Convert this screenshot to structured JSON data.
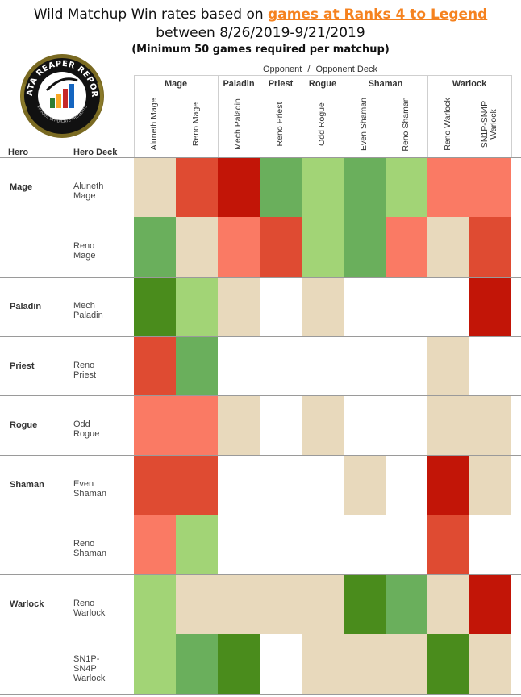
{
  "title": {
    "line1_prefix": "Wild Matchup Win rates based on ",
    "line1_link": "games at Ranks 4 to Legend",
    "line2": "between 8/26/2019-9/21/2019",
    "line3": "(Minimum 50 games required per matchup)"
  },
  "logo": {
    "text_top": "DATA REAPER REPORT",
    "text_bottom": "VICIOUS SYNDICATE PRESENTS"
  },
  "header": {
    "opponent": "Opponent",
    "sep": "/",
    "opponent_deck": "Opponent Deck",
    "hero": "Hero",
    "hero_deck": "Hero Deck"
  },
  "colors": {
    "dark_green": "#4a8c1c",
    "mid_green": "#6aaf5c",
    "light_green": "#a2d476",
    "neutral": "#e8d9bc",
    "salmon": "#fa7a64",
    "red_orange": "#df4b32",
    "dark_red": "#c21507",
    "empty": "#ffffff"
  },
  "chart_data": {
    "type": "heatmap",
    "title": "Wild Matchup Win rates based on games at Ranks 4 to Legend between 8/26/2019-9/21/2019",
    "subtitle": "(Minimum 50 games required per matchup)",
    "xlabel": "Opponent / Opponent Deck",
    "ylabel": "Hero / Hero Deck",
    "column_groups": [
      {
        "name": "Mage",
        "decks": [
          "Aluneth Mage",
          "Reno Mage"
        ]
      },
      {
        "name": "Paladin",
        "decks": [
          "Mech Paladin"
        ]
      },
      {
        "name": "Priest",
        "decks": [
          "Reno Priest"
        ]
      },
      {
        "name": "Rogue",
        "decks": [
          "Odd Rogue"
        ]
      },
      {
        "name": "Shaman",
        "decks": [
          "Even Shaman",
          "Reno Shaman"
        ]
      },
      {
        "name": "Warlock",
        "decks": [
          "Reno Warlock",
          "SN1P-SN4P Warlock"
        ]
      }
    ],
    "row_groups": [
      {
        "name": "Mage",
        "decks": [
          "Aluneth Mage",
          "Reno Mage"
        ]
      },
      {
        "name": "Paladin",
        "decks": [
          "Mech Paladin"
        ]
      },
      {
        "name": "Priest",
        "decks": [
          "Reno Priest"
        ]
      },
      {
        "name": "Rogue",
        "decks": [
          "Odd Rogue"
        ]
      },
      {
        "name": "Shaman",
        "decks": [
          "Even Shaman",
          "Reno Shaman"
        ]
      },
      {
        "name": "Warlock",
        "decks": [
          "Reno Warlock",
          "SN1P-SN4P Warlock"
        ]
      }
    ],
    "cells": [
      [
        "neutral",
        "red_orange",
        "dark_red",
        "mid_green",
        "light_green",
        "mid_green",
        "light_green",
        "salmon",
        "salmon"
      ],
      [
        "mid_green",
        "neutral",
        "salmon",
        "red_orange",
        "light_green",
        "mid_green",
        "salmon",
        "neutral",
        "red_orange"
      ],
      [
        "dark_green",
        "light_green",
        "neutral",
        "empty",
        "neutral",
        "empty",
        "empty",
        "empty",
        "dark_red"
      ],
      [
        "red_orange",
        "mid_green",
        "empty",
        "empty",
        "empty",
        "empty",
        "empty",
        "neutral",
        "empty"
      ],
      [
        "salmon",
        "salmon",
        "neutral",
        "empty",
        "neutral",
        "empty",
        "empty",
        "neutral",
        "neutral"
      ],
      [
        "red_orange",
        "red_orange",
        "empty",
        "empty",
        "empty",
        "neutral",
        "empty",
        "dark_red",
        "neutral"
      ],
      [
        "salmon",
        "light_green",
        "empty",
        "empty",
        "empty",
        "empty",
        "empty",
        "red_orange",
        "empty"
      ],
      [
        "light_green",
        "neutral",
        "neutral",
        "neutral",
        "neutral",
        "dark_green",
        "mid_green",
        "neutral",
        "dark_red"
      ],
      [
        "light_green",
        "mid_green",
        "dark_green",
        "empty",
        "neutral",
        "neutral",
        "neutral",
        "dark_green",
        "neutral"
      ]
    ]
  }
}
